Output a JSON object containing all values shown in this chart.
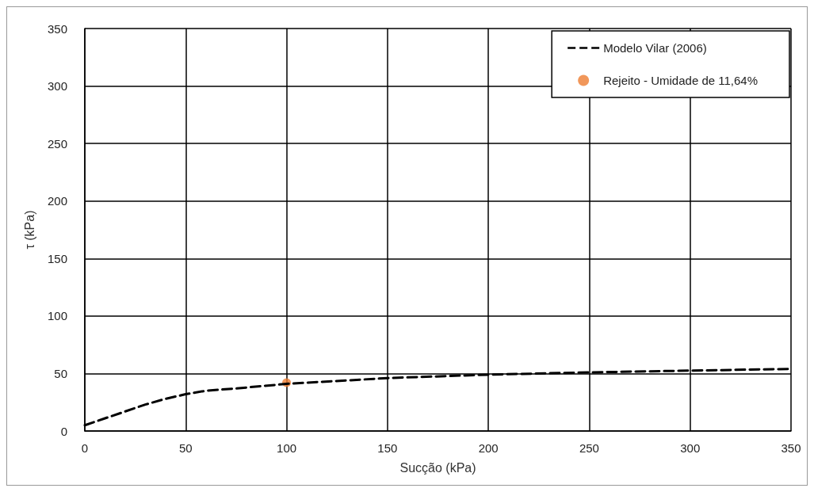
{
  "chart_data": {
    "type": "line",
    "xlabel": "Sucção (kPa)",
    "ylabel": "τ (kPa)",
    "xlim": [
      0,
      350
    ],
    "xticks": [
      0,
      50,
      100,
      150,
      200,
      250,
      300,
      350
    ],
    "ylim": [
      0,
      350
    ],
    "yticks": [
      0,
      50,
      100,
      150,
      200,
      250,
      300,
      350
    ],
    "grid": true,
    "legend": "top right",
    "series": [
      {
        "name": "Modelo Vilar (2006)",
        "color": "#000000",
        "type": "line",
        "line_style": "dashed",
        "marker": "none",
        "x": [
          0,
          10,
          20,
          30,
          40,
          50,
          60,
          75,
          100,
          150,
          200,
          250,
          300,
          350
        ],
        "values": [
          5,
          11,
          17,
          23,
          28,
          32,
          35,
          37,
          41,
          46,
          49,
          51,
          52.5,
          54
        ]
      },
      {
        "name": "Rejeito - Umidade de 11,64%",
        "color": "#ed7d31",
        "type": "scatter",
        "marker": "circle",
        "x": [
          100
        ],
        "values": [
          42
        ]
      }
    ]
  }
}
